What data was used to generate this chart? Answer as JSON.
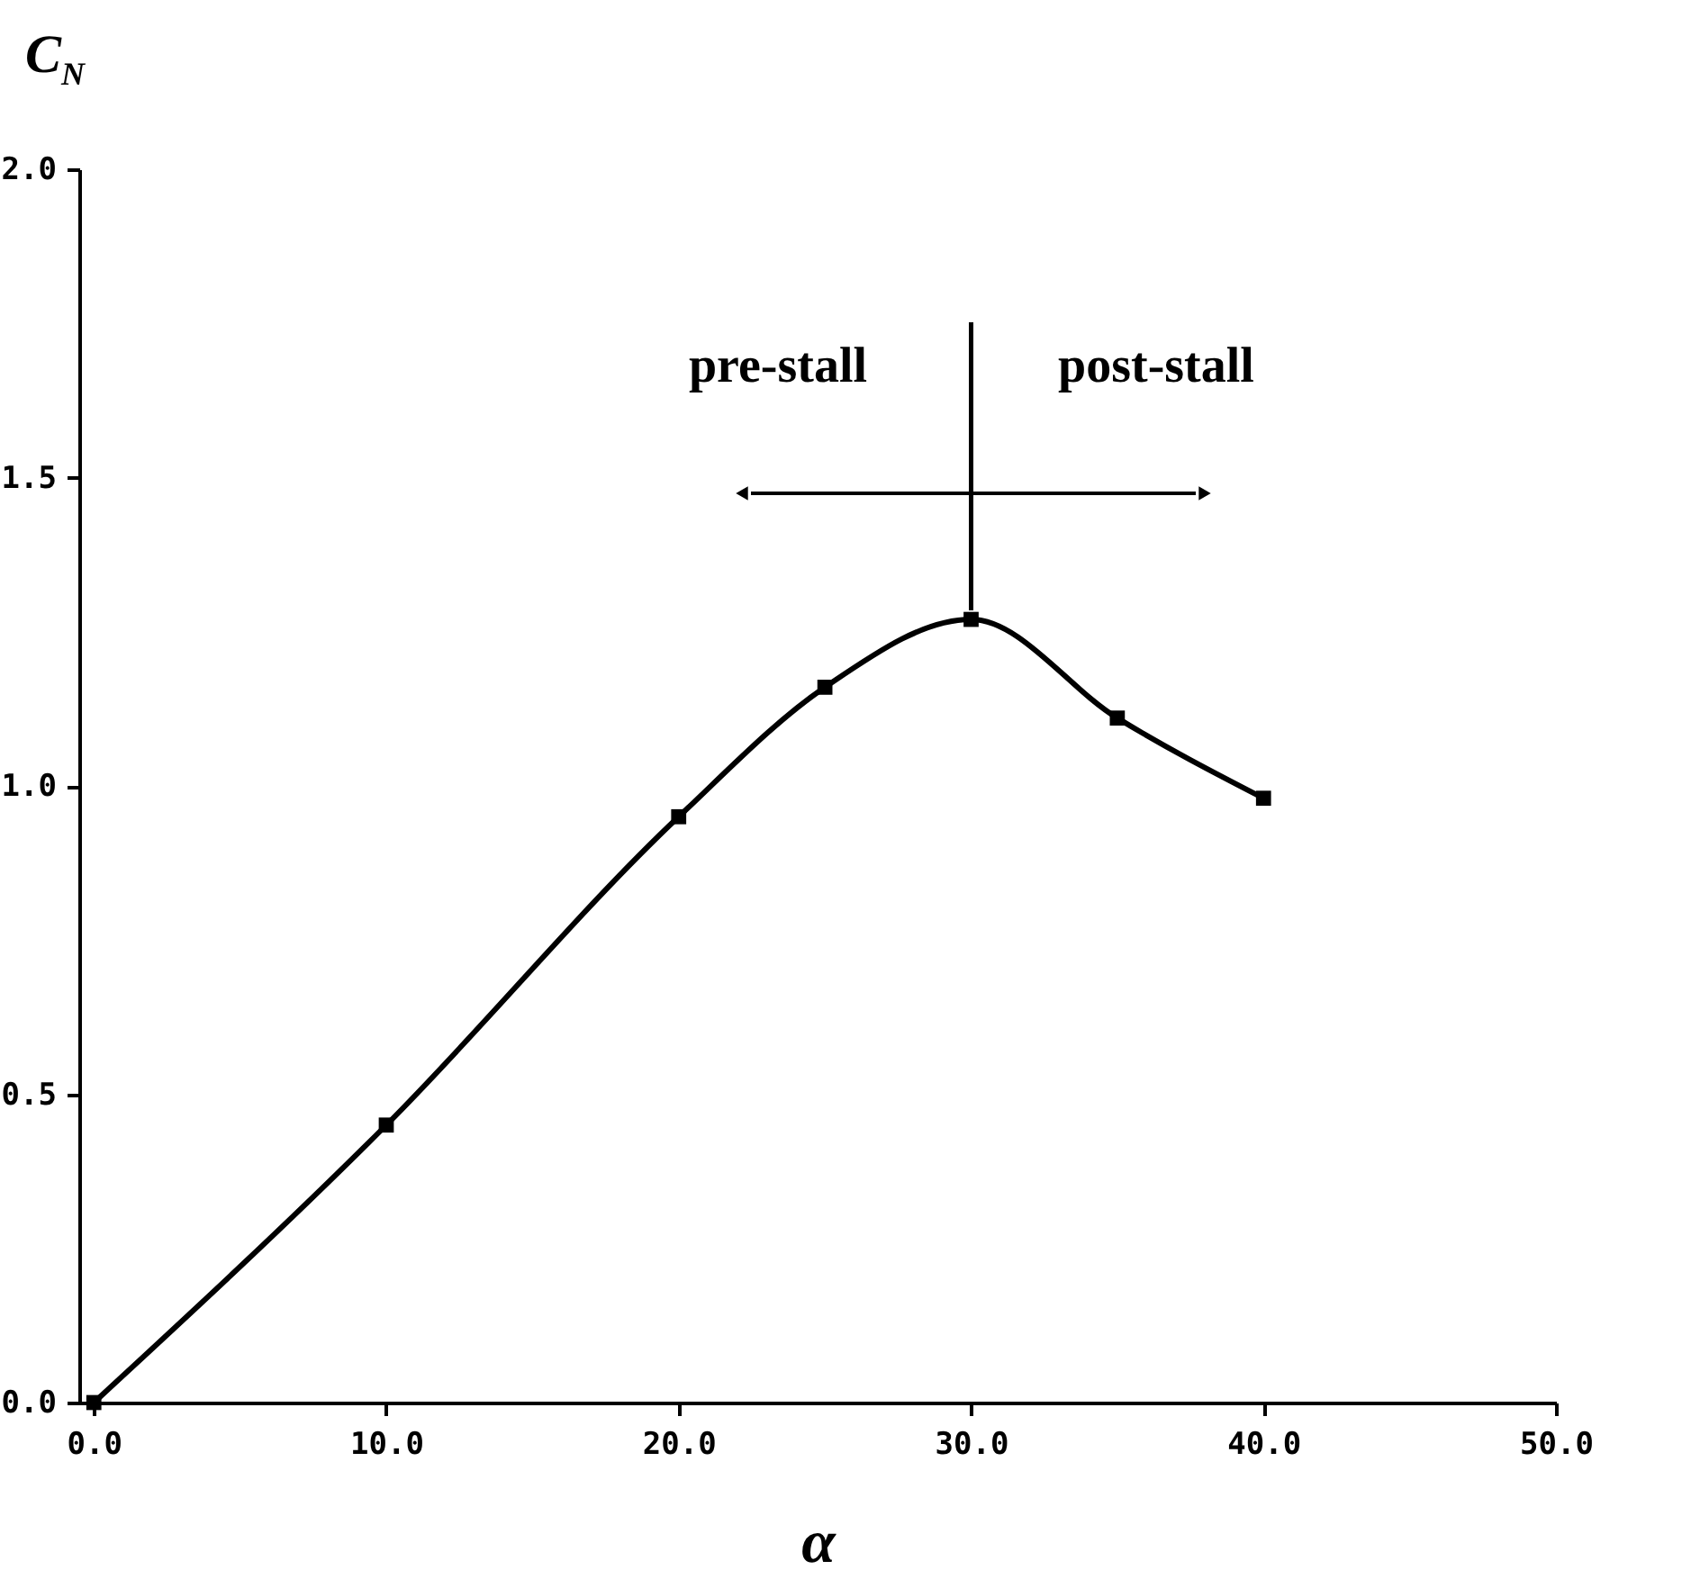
{
  "chart_data": {
    "type": "line",
    "xlabel": "α",
    "ylabel": "C$_{N}$",
    "x": [
      0,
      10,
      20,
      25,
      30,
      35,
      40
    ],
    "series": [
      {
        "color": "#000000",
        "values": [
          0,
          0.45,
          0.95,
          1.16,
          1.27,
          1.11,
          0.98
        ]
      }
    ],
    "xlim": [
      -0.5,
      50
    ],
    "xticks": [
      {
        "value": 0,
        "label": "0.0"
      },
      {
        "value": 10,
        "label": "10.0"
      },
      {
        "value": 20,
        "label": "20.0"
      },
      {
        "value": 30,
        "label": "30.0"
      },
      {
        "value": 40,
        "label": "40.0"
      },
      {
        "value": 50,
        "label": "50.0"
      }
    ],
    "ylim": [
      0,
      2
    ],
    "yticks": [
      {
        "value": 0,
        "label": "0.0"
      },
      {
        "value": 0.5,
        "label": "0.5"
      },
      {
        "value": 1,
        "label": "1.0"
      },
      {
        "value": 1.5,
        "label": "1.5"
      },
      {
        "value": 2,
        "label": "2.0"
      }
    ],
    "ref_lines": [
      {
        "axis": "x",
        "value": 30
      }
    ],
    "annotations": [
      "pre-stall",
      "post-stall"
    ],
    "marker": "square",
    "line_style": "solid",
    "grid": false
  }
}
